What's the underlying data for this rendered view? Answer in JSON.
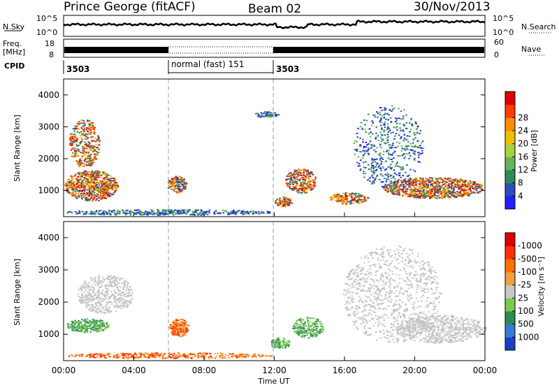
{
  "header": {
    "station": "Prince George (fitACF)",
    "beam": "Beam 02",
    "date": "30/Nov/2013"
  },
  "top_panels": {
    "nsky_label": "N.Sky",
    "nsky_ticks": [
      "10^5",
      "10^0"
    ],
    "nsearch_label": "N.Search",
    "nsearch_ticks": [
      "10^5",
      "10^0"
    ],
    "freq_label_1": "Freq.",
    "freq_label_2": "[MHz]",
    "freq_ticks": [
      "18",
      "8"
    ],
    "nave_label": "Nave",
    "nave_ticks": [
      "60",
      "0"
    ],
    "cpid_label": "CPID",
    "cpid_segments": [
      {
        "label": "3503",
        "start_hour": 0,
        "end_hour": 6
      },
      {
        "label": "normal (fast) 151",
        "start_hour": 6,
        "end_hour": 12
      },
      {
        "label": "3503",
        "start_hour": 12,
        "end_hour": 24
      }
    ]
  },
  "chart_data": [
    {
      "type": "heatmap",
      "title": "",
      "ylabel": "Slant Range [km]",
      "xlim": [
        0,
        24
      ],
      "ylim": [
        180,
        4500
      ],
      "yticks": [
        "1000",
        "2000",
        "3000",
        "4000"
      ],
      "colorbar_label": "Power [dB]",
      "colorbar_ticks": [
        "4",
        "8",
        "12",
        "16",
        "20",
        "24",
        "28"
      ],
      "colorbar_colors": [
        "#1f1fff",
        "#2b4fb8",
        "#2e8b57",
        "#64b45a",
        "#a8d23c",
        "#f0c000",
        "#ff8c00",
        "#ff3c00",
        "#e00000"
      ]
    },
    {
      "type": "heatmap",
      "title": "",
      "ylabel": "Slant Range [km]",
      "xlabel": "Time UT",
      "xlim": [
        0,
        24
      ],
      "ylim": [
        180,
        4500
      ],
      "xticks": [
        "00:00",
        "04:00",
        "08:00",
        "12:00",
        "16:00",
        "20:00",
        "00:00"
      ],
      "yticks": [
        "1000",
        "2000",
        "3000",
        "4000"
      ],
      "colorbar_label": "Velocity [m s⁻¹]",
      "colorbar_ticks": [
        "1000",
        "500",
        "100",
        "25",
        "-25",
        "-100",
        "-500",
        "-1000"
      ],
      "colorbar_colors": [
        "#1a3fc8",
        "#3a7ad8",
        "#2e8b57",
        "#7cc850",
        "#c8c8c8",
        "#f0a040",
        "#ff7000",
        "#ff3000",
        "#e00000"
      ]
    }
  ]
}
